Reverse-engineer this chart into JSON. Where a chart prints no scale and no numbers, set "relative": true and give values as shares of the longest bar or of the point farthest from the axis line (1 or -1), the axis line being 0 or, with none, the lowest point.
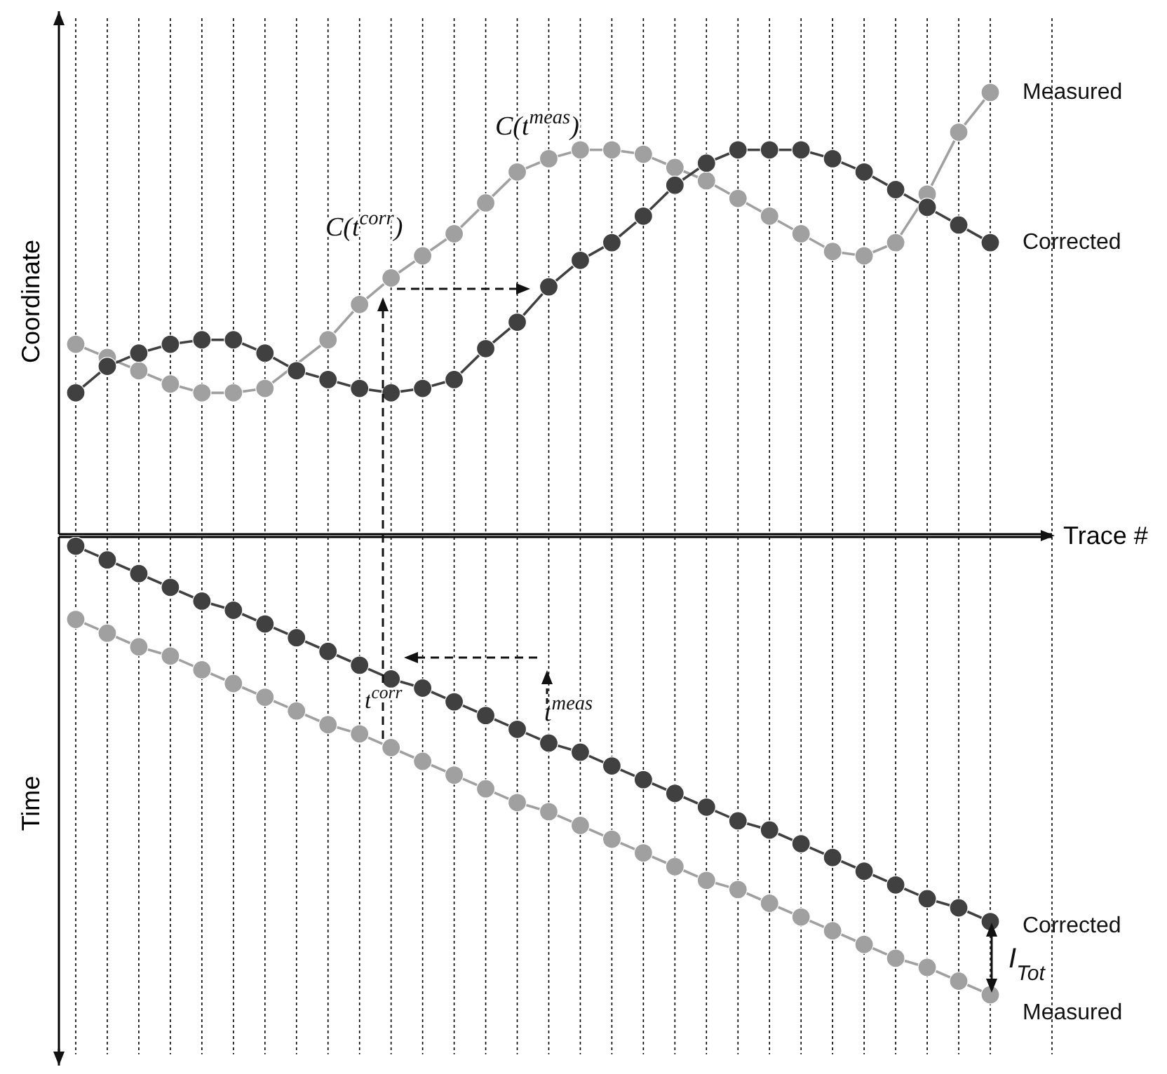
{
  "chart_data": [
    {
      "type": "line",
      "xlabel": "Trace #",
      "ylabel": "Coordinate",
      "relative": true,
      "grid": "x",
      "marker": "circle",
      "line_style": "solid",
      "categories": [
        null,
        null,
        null,
        null,
        null,
        null,
        null,
        null,
        null,
        null,
        null,
        null,
        null,
        null,
        null,
        null,
        null,
        null,
        null,
        null,
        null,
        null,
        null,
        null,
        null,
        null,
        null,
        null,
        null,
        null
      ],
      "series": [
        {
          "name": "Measured",
          "color": "#a0a0a0",
          "values": [
            0.43,
            0.4,
            0.37,
            0.34,
            0.32,
            0.32,
            0.33,
            null,
            0.44,
            0.52,
            0.58,
            0.63,
            0.68,
            0.75,
            0.82,
            0.85,
            0.87,
            0.87,
            0.86,
            0.83,
            0.8,
            0.76,
            0.72,
            0.68,
            0.64,
            0.63,
            0.66,
            0.77,
            0.91,
            1.0
          ]
        },
        {
          "name": "Corrected",
          "color": "#404040",
          "values": [
            0.32,
            0.38,
            0.41,
            0.43,
            0.44,
            0.44,
            0.41,
            0.37,
            0.35,
            0.33,
            0.32,
            0.33,
            0.35,
            0.42,
            0.48,
            0.56,
            0.62,
            0.66,
            0.72,
            0.79,
            0.84,
            0.87,
            0.87,
            0.87,
            0.85,
            0.82,
            0.78,
            0.74,
            0.7,
            0.66
          ]
        }
      ],
      "annotations": [
        "C(t$^{meas}$)",
        "C(t$^{corr}$)"
      ]
    },
    {
      "type": "line",
      "ylabel": "Time",
      "relative": true,
      "grid": "x",
      "marker": "circle",
      "line_style": "solid",
      "categories": [
        null,
        null,
        null,
        null,
        null,
        null,
        null,
        null,
        null,
        null,
        null,
        null,
        null,
        null,
        null,
        null,
        null,
        null,
        null,
        null,
        null,
        null,
        null,
        null,
        null,
        null,
        null,
        null,
        null,
        null
      ],
      "series": [
        {
          "name": "Corrected",
          "color": "#404040",
          "values": [
            -0.02,
            -0.05,
            -0.08,
            -0.11,
            -0.14,
            -0.16,
            -0.19,
            -0.22,
            -0.25,
            -0.28,
            -0.31,
            -0.33,
            -0.36,
            -0.39,
            -0.42,
            -0.45,
            -0.47,
            -0.5,
            -0.53,
            -0.56,
            -0.59,
            -0.62,
            -0.64,
            -0.67,
            -0.7,
            -0.73,
            -0.76,
            -0.79,
            -0.81,
            -0.84
          ]
        },
        {
          "name": "Measured",
          "color": "#a0a0a0",
          "values": [
            -0.18,
            -0.21,
            -0.24,
            -0.26,
            -0.29,
            -0.32,
            -0.35,
            -0.38,
            -0.41,
            -0.43,
            -0.46,
            -0.49,
            -0.52,
            -0.55,
            -0.58,
            -0.6,
            -0.63,
            -0.66,
            -0.69,
            -0.72,
            -0.75,
            -0.77,
            -0.8,
            -0.83,
            -0.86,
            -0.89,
            -0.92,
            -0.94,
            -0.97,
            -1.0
          ]
        }
      ],
      "annotations": [
        "t$^{corr}$",
        "t$^{meas}$",
        "I$_{Tot}$"
      ]
    }
  ]
}
